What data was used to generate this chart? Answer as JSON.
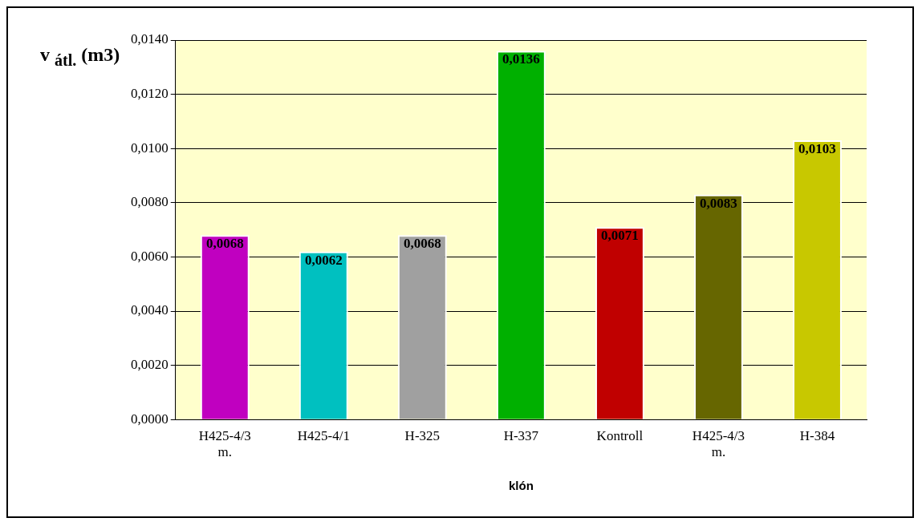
{
  "chart_data": {
    "type": "bar",
    "ylabel": "v $_{átl.}$ (m3)",
    "xlabel": "klón",
    "categories": [
      "H425-4/3 m.",
      "H425-4/1",
      "H-325",
      "H-337",
      "Kontroll",
      "H425-4/3 m.",
      "H-384"
    ],
    "values": [
      0.0068,
      0.0062,
      0.0068,
      0.0136,
      0.0071,
      0.0083,
      0.0103
    ],
    "colors": [
      "#c000c0",
      "#00c0c0",
      "#a0a0a0",
      "#00b000",
      "#c00000",
      "#666600",
      "#c8c800"
    ],
    "value_labels": [
      "0,0068",
      "0,0062",
      "0,0068",
      "0,0136",
      "0,0071",
      "0,0083",
      "0,0103"
    ],
    "ylim": [
      0,
      0.014
    ],
    "yticks": [
      {
        "value": 0,
        "label": "0,0000"
      },
      {
        "value": 0.002,
        "label": "0,0020"
      },
      {
        "value": 0.004,
        "label": "0,0040"
      },
      {
        "value": 0.006,
        "label": "0,0060"
      },
      {
        "value": 0.008,
        "label": "0,0080"
      },
      {
        "value": 0.01,
        "label": "0,0100"
      },
      {
        "value": 0.012,
        "label": "0,0120"
      },
      {
        "value": 0.014,
        "label": "0,0140"
      }
    ],
    "grid": "y",
    "legend": false
  }
}
